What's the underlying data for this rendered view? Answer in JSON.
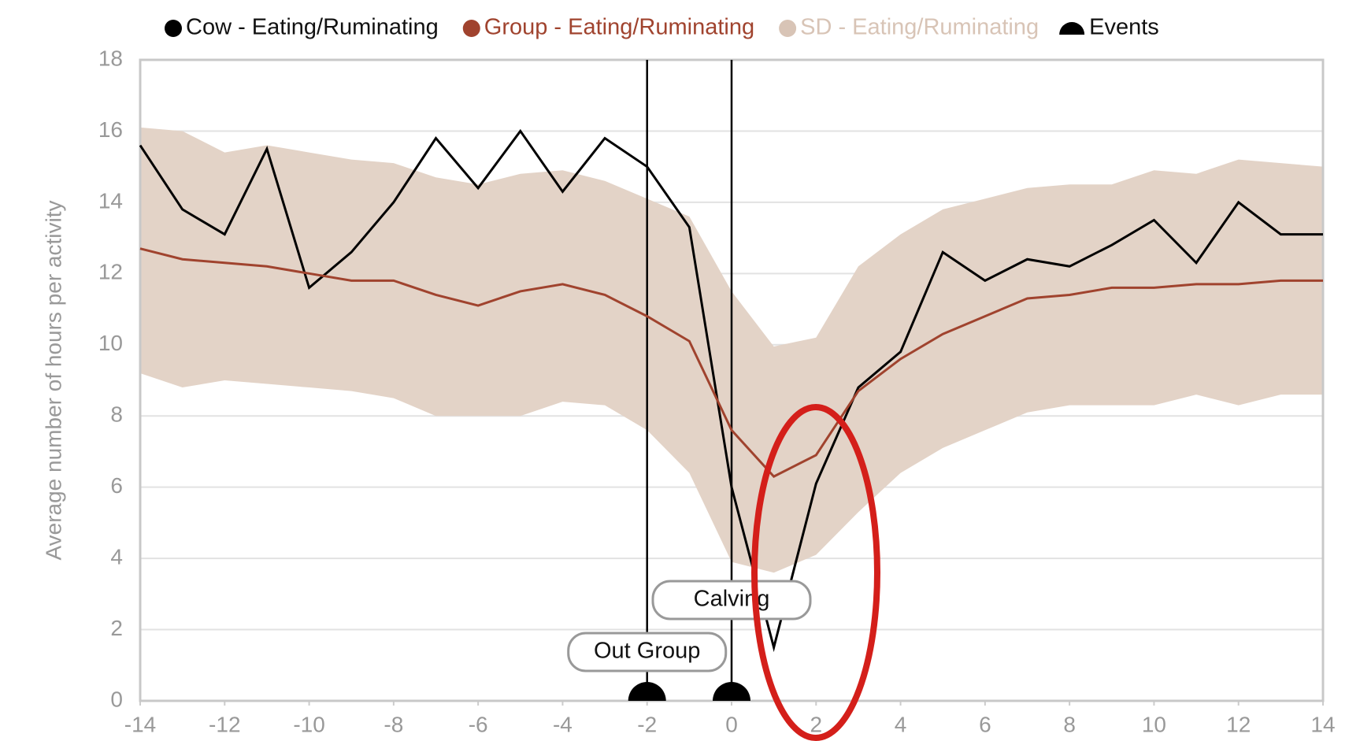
{
  "chart_data": {
    "type": "line",
    "y_label": "Average number of hours per activity",
    "x": [
      -14,
      -13,
      -12,
      -11,
      -10,
      -9,
      -8,
      -7,
      -6,
      -5,
      -4,
      -3,
      -2,
      -1,
      0,
      1,
      2,
      3,
      4,
      5,
      6,
      7,
      8,
      9,
      10,
      11,
      12,
      13,
      14
    ],
    "series": [
      {
        "name": "Cow - Eating/Ruminating",
        "color": "#000000",
        "values": [
          15.6,
          13.8,
          13.1,
          15.5,
          11.6,
          12.6,
          14.0,
          15.8,
          14.4,
          16.0,
          14.3,
          15.8,
          15.0,
          13.3,
          6.0,
          1.5,
          6.1,
          8.8,
          9.8,
          12.6,
          11.8,
          12.4,
          12.2,
          12.8,
          13.5,
          12.3,
          14.0,
          13.1,
          13.1
        ]
      },
      {
        "name": "Group - Eating/Ruminating",
        "color": "#a0432e",
        "values": [
          12.7,
          12.4,
          12.3,
          12.2,
          12.0,
          11.8,
          11.8,
          11.4,
          11.1,
          11.5,
          11.7,
          11.4,
          10.8,
          10.1,
          7.6,
          6.3,
          6.9,
          8.7,
          9.6,
          10.3,
          10.8,
          11.3,
          11.4,
          11.6,
          11.6,
          11.7,
          11.7,
          11.8,
          11.8
        ]
      }
    ],
    "band": {
      "name": "SD - Eating/Ruminating",
      "color": "#e3d3c7",
      "legend_color": "#d8c4b6",
      "low": [
        9.2,
        8.8,
        9.0,
        8.9,
        8.8,
        8.7,
        8.5,
        8.0,
        8.0,
        8.0,
        8.4,
        8.3,
        7.6,
        6.4,
        3.9,
        3.6,
        4.1,
        5.3,
        6.4,
        7.1,
        7.6,
        8.1,
        8.3,
        8.3,
        8.3,
        8.6,
        8.3,
        8.6,
        8.6
      ],
      "high": [
        16.1,
        16.0,
        15.4,
        15.6,
        15.4,
        15.2,
        15.1,
        14.7,
        14.5,
        14.8,
        14.9,
        14.6,
        14.1,
        13.6,
        11.5,
        9.95,
        10.2,
        12.2,
        13.1,
        13.8,
        14.1,
        14.4,
        14.5,
        14.5,
        14.9,
        14.8,
        15.2,
        15.1,
        15.0
      ]
    },
    "events": {
      "name": "Events",
      "color": "#000000",
      "x": [
        -2,
        0
      ],
      "labels": [
        "Out Group",
        "Calving"
      ]
    },
    "xlim": [
      -14,
      14
    ],
    "xticks": [
      -14,
      -12,
      -10,
      -8,
      -6,
      -4,
      -2,
      0,
      2,
      4,
      6,
      8,
      10,
      12,
      14
    ],
    "ylim": [
      0,
      18
    ],
    "yticks": [
      0,
      2,
      4,
      6,
      8,
      10,
      12,
      14,
      16,
      18
    ],
    "grid": true
  }
}
